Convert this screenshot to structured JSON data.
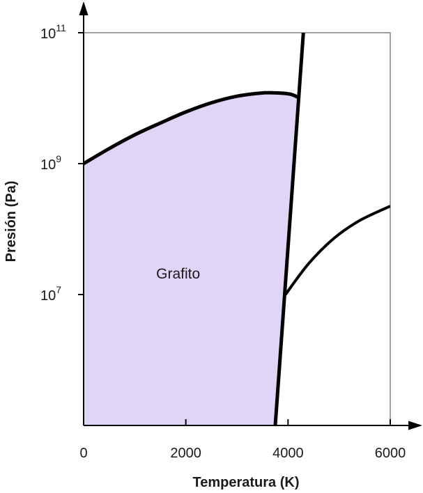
{
  "chart_data": {
    "type": "line",
    "xlabel": "Temperatura (K)",
    "ylabel": "Presión (Pa)",
    "x_scale": "linear",
    "y_scale": "log",
    "xlim": [
      0,
      6000
    ],
    "ylim_log10": [
      5,
      11
    ],
    "x_ticks": [
      {
        "value": 0,
        "label": "0"
      },
      {
        "value": 2000,
        "label": "2000"
      },
      {
        "value": 4000,
        "label": "4000"
      },
      {
        "value": 6000,
        "label": "6000"
      }
    ],
    "y_ticks": [
      {
        "log10": 7,
        "base": "10",
        "exp": "7"
      },
      {
        "log10": 9,
        "base": "10",
        "exp": "9"
      },
      {
        "log10": 11,
        "base": "10",
        "exp": "11"
      }
    ],
    "curves": [
      {
        "id": "graphite-upper-boundary",
        "points": [
          [
            0,
            9.0
          ],
          [
            500,
            9.23
          ],
          [
            1000,
            9.44
          ],
          [
            1500,
            9.62
          ],
          [
            2000,
            9.79
          ],
          [
            2500,
            9.93
          ],
          [
            3000,
            10.03
          ],
          [
            3500,
            10.08
          ],
          [
            3800,
            10.08
          ],
          [
            4050,
            10.06
          ],
          [
            4230,
            10.0
          ]
        ]
      },
      {
        "id": "melting-line",
        "points": [
          [
            3750,
            5.0
          ],
          [
            4300,
            11.0
          ]
        ]
      },
      {
        "id": "lower-right-boundary",
        "points": [
          [
            3950,
            7.0
          ],
          [
            4400,
            7.47
          ],
          [
            4900,
            7.86
          ],
          [
            5400,
            8.13
          ],
          [
            6000,
            8.35
          ]
        ]
      }
    ],
    "regions": [
      {
        "id": "graphite",
        "label": "Grafito",
        "fill": "#e1d5f7",
        "label_at": [
          1850,
          7.32
        ]
      }
    ],
    "colors": {
      "line": "#000000",
      "axis": "#000000",
      "frame": "#808080",
      "region_fill": "#e1d5f7"
    }
  }
}
